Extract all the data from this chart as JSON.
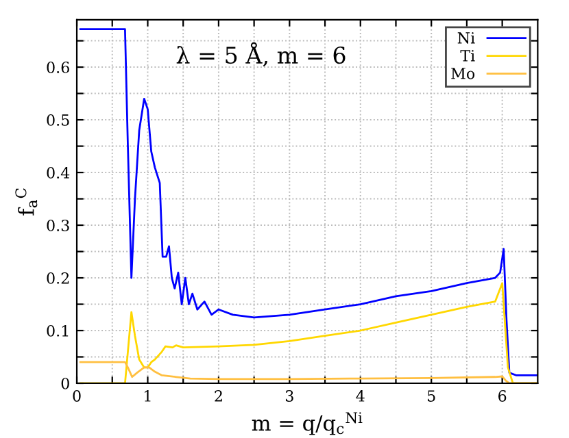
{
  "chart_data": {
    "type": "line",
    "title": "λ = 5 Å, m = 6",
    "xlabel": "m = q/q$_{c}$$^{Ni}$",
    "ylabel": "f$_{a}$$^{C}$",
    "xlim": [
      0,
      6.5
    ],
    "ylim": [
      0,
      0.69
    ],
    "xticks": [
      0,
      {
        "value": 0.5,
        "label": null
      },
      1,
      {
        "value": 1.5,
        "label": null
      },
      2,
      {
        "value": 2.5,
        "label": null
      },
      3,
      {
        "value": 3.5,
        "label": null
      },
      4,
      {
        "value": 4.5,
        "label": null
      },
      5,
      {
        "value": 5.5,
        "label": null
      },
      6
    ],
    "yticks": [
      0,
      {
        "value": 0.05,
        "label": null
      },
      0.1,
      {
        "value": 0.15,
        "label": null
      },
      0.2,
      {
        "value": 0.25,
        "label": null
      },
      0.3,
      {
        "value": 0.35,
        "label": null
      },
      0.4,
      {
        "value": 0.45,
        "label": null
      },
      0.5,
      {
        "value": 0.55,
        "label": null
      },
      0.6,
      {
        "value": 0.65,
        "label": null
      }
    ],
    "grid": true,
    "legend": "top right",
    "series": [
      {
        "name": "Ni",
        "color": "#0000ff",
        "x": [
          0.05,
          0.68,
          0.72,
          0.77,
          0.82,
          0.88,
          0.95,
          1.0,
          1.05,
          1.1,
          1.17,
          1.21,
          1.26,
          1.3,
          1.34,
          1.38,
          1.43,
          1.48,
          1.53,
          1.58,
          1.63,
          1.7,
          1.8,
          1.9,
          2.0,
          2.2,
          2.5,
          3.0,
          3.5,
          4.0,
          4.5,
          5.0,
          5.5,
          5.9,
          5.97,
          6.02,
          6.06,
          6.1,
          6.2,
          6.5
        ],
        "values": [
          0.672,
          0.672,
          0.45,
          0.2,
          0.35,
          0.48,
          0.54,
          0.52,
          0.44,
          0.41,
          0.38,
          0.24,
          0.24,
          0.26,
          0.2,
          0.18,
          0.21,
          0.15,
          0.2,
          0.15,
          0.17,
          0.14,
          0.155,
          0.13,
          0.14,
          0.13,
          0.125,
          0.13,
          0.14,
          0.15,
          0.165,
          0.175,
          0.19,
          0.2,
          0.21,
          0.255,
          0.12,
          0.02,
          0.015,
          0.015
        ]
      },
      {
        "name": "Ti",
        "color": "#ffd700",
        "x": [
          0.05,
          0.68,
          0.72,
          0.77,
          0.82,
          0.88,
          0.95,
          1.0,
          1.05,
          1.1,
          1.2,
          1.25,
          1.35,
          1.4,
          1.5,
          2.0,
          2.5,
          3.0,
          3.5,
          4.0,
          4.5,
          5.0,
          5.5,
          5.9,
          6.0,
          6.02,
          6.08,
          6.15,
          6.5
        ],
        "values": [
          0.0,
          0.0,
          0.06,
          0.135,
          0.09,
          0.045,
          0.03,
          0.03,
          0.04,
          0.045,
          0.06,
          0.07,
          0.068,
          0.072,
          0.068,
          0.07,
          0.073,
          0.08,
          0.09,
          0.1,
          0.115,
          0.13,
          0.145,
          0.155,
          0.19,
          0.15,
          0.03,
          0.0,
          0.0
        ]
      },
      {
        "name": "Mo",
        "color": "#ffbf40",
        "x": [
          0.05,
          0.68,
          0.72,
          0.78,
          0.85,
          0.95,
          1.02,
          1.1,
          1.2,
          1.4,
          1.6,
          2.0,
          3.0,
          4.0,
          5.0,
          5.9,
          6.0,
          6.05,
          6.1,
          6.5
        ],
        "values": [
          0.04,
          0.04,
          0.03,
          0.012,
          0.02,
          0.03,
          0.03,
          0.022,
          0.015,
          0.012,
          0.009,
          0.008,
          0.008,
          0.009,
          0.01,
          0.012,
          0.013,
          0.005,
          0.0,
          0.0
        ]
      }
    ]
  }
}
